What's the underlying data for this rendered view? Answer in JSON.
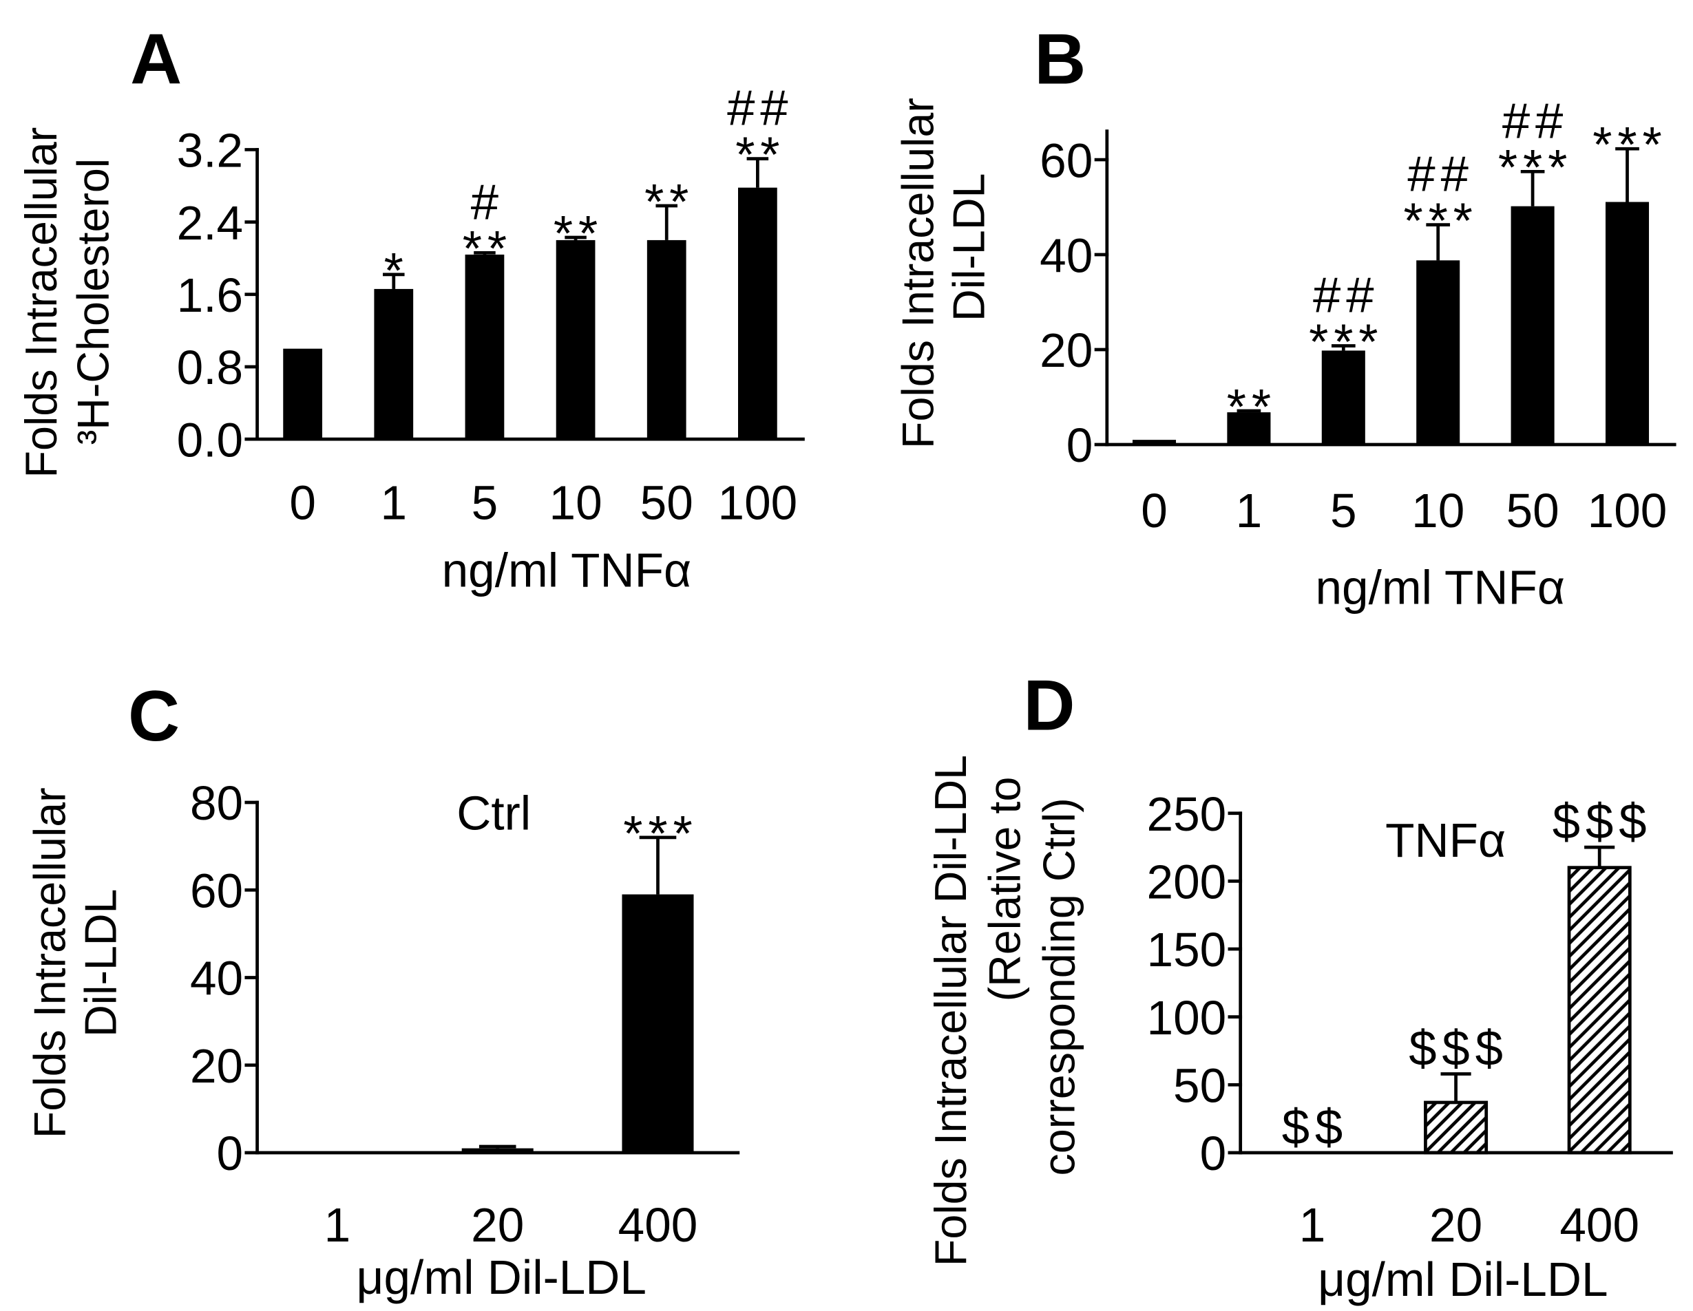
{
  "colors": {
    "bar_fill": "#000000",
    "axis": "#000000",
    "background": "#ffffff"
  },
  "chart_data": [
    {
      "panel": "A",
      "type": "bar",
      "categories": [
        "0",
        "1",
        "5",
        "10",
        "50",
        "100"
      ],
      "values": [
        1.0,
        1.66,
        2.04,
        2.2,
        2.2,
        2.78
      ],
      "errors": [
        0,
        0.16,
        0.02,
        0.03,
        0.38,
        0.32
      ],
      "annotations": [
        [],
        [
          "*"
        ],
        [
          "**",
          "#"
        ],
        [
          "**"
        ],
        [
          "**"
        ],
        [
          "**",
          "##"
        ]
      ],
      "xlabel": "ng/ml TNFα",
      "ylabel": [
        "Folds Intracellular",
        "³H-Cholesterol"
      ],
      "ylim": [
        0,
        3.2
      ],
      "yticks": [
        0,
        0.8,
        1.6,
        2.4,
        3.2
      ],
      "ytick_labels": [
        "0.0",
        "0.8",
        "1.6",
        "2.4",
        "3.2"
      ],
      "fill": "solid",
      "inset": null
    },
    {
      "panel": "B",
      "type": "bar",
      "categories": [
        "0",
        "1",
        "5",
        "10",
        "50",
        "100"
      ],
      "values": [
        1.0,
        6.8,
        19.8,
        38.8,
        50.2,
        51.1
      ],
      "errors": [
        0,
        0.3,
        1.0,
        7.5,
        7.3,
        11.2
      ],
      "annotations": [
        [],
        [
          "**"
        ],
        [
          "***",
          "##"
        ],
        [
          "***",
          "##"
        ],
        [
          "***",
          "##"
        ],
        [
          "***"
        ]
      ],
      "xlabel": "ng/ml TNFα",
      "ylabel": [
        "Folds Intracellular",
        "Dil-LDL"
      ],
      "ylim": [
        0,
        66
      ],
      "yticks": [
        0,
        20,
        40,
        60
      ],
      "ytick_labels": [
        "0",
        "20",
        "40",
        "60"
      ],
      "fill": "solid",
      "inset": null
    },
    {
      "panel": "C",
      "type": "bar",
      "categories": [
        "1",
        "20",
        "400"
      ],
      "values": [
        0.1,
        1.0,
        59
      ],
      "errors": [
        0,
        0.4,
        13
      ],
      "annotations": [
        [],
        [],
        [
          "***"
        ]
      ],
      "xlabel": "μg/ml Dil-LDL",
      "ylabel": [
        "Folds Intracellular",
        "Dil-LDL"
      ],
      "ylim": [
        0,
        80
      ],
      "yticks": [
        0,
        20,
        40,
        60,
        80
      ],
      "ytick_labels": [
        "0",
        "20",
        "40",
        "60",
        "80"
      ],
      "fill": "solid",
      "inset": "Ctrl"
    },
    {
      "panel": "D",
      "type": "bar",
      "categories": [
        "1",
        "20",
        "400"
      ],
      "values": [
        0,
        37,
        210
      ],
      "errors": [
        0,
        21,
        15
      ],
      "annotations": [
        [
          "$$"
        ],
        [
          "$$$"
        ],
        [
          "$$$"
        ]
      ],
      "xlabel": "μg/ml Dil-LDL",
      "ylabel": [
        "Folds Intracellular Dil-LDL",
        "(Relative to",
        "corresponding Ctrl)"
      ],
      "ylim": [
        0,
        250
      ],
      "yticks": [
        0,
        50,
        100,
        150,
        200,
        250
      ],
      "ytick_labels": [
        "0",
        "50",
        "100",
        "150",
        "200",
        "250"
      ],
      "fill": "hatched",
      "inset": "TNFα"
    }
  ]
}
